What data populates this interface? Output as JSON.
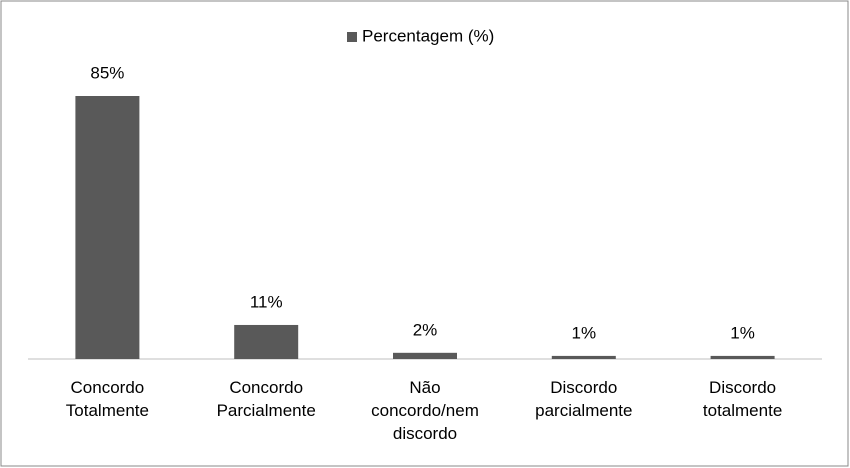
{
  "chart_data": {
    "type": "bar",
    "categories": [
      "Concordo Totalmente",
      "Concordo Parcialmente",
      "Não concordo/nem discordo",
      "Discordo parcialmente",
      "Discordo totalmente"
    ],
    "series": [
      {
        "name": "Percentagem (%)",
        "color": "#595959",
        "values": [
          85,
          11,
          2,
          1,
          1
        ],
        "value_labels": [
          "85%",
          "11%",
          "2%",
          "1%",
          "1%"
        ]
      }
    ],
    "legend": "top"
  }
}
